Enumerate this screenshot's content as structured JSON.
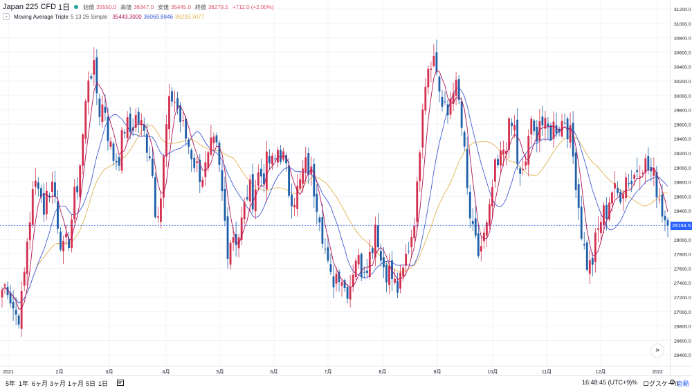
{
  "legend": {
    "symbol": "Japan 225 CFD",
    "interval": "1日",
    "open_label": "始値",
    "open_value": "35550.0",
    "high_label": "高値",
    "high_value": "36347.0",
    "low_label": "安値",
    "low_value": "35445.0",
    "close_label": "終値",
    "close_value": "36279.5",
    "change": "+712.0 (+2.00%)",
    "indicator_name": "Moving Average Triple",
    "indicator_params": "5 13 26 Simple",
    "ma1_value": "35443.3000",
    "ma2_value": "36069.8846",
    "ma3_value": "36233.3077"
  },
  "price_axis": {
    "labels": [
      "31200.0",
      "31000.0",
      "30800.0",
      "30600.0",
      "30400.0",
      "30200.0",
      "30000.0",
      "29800.0",
      "29600.0",
      "29400.0",
      "29200.0",
      "29000.0",
      "28800.0",
      "28600.0",
      "28400.0",
      "28200.0",
      "28000.0",
      "27800.0",
      "27600.0",
      "27400.0",
      "27200.0",
      "27000.0",
      "26800.0",
      "26600.0",
      "26400.0"
    ],
    "last_price": "28194.5"
  },
  "time_axis": {
    "labels": [
      "2021",
      "2月",
      "3月",
      "4月",
      "5月",
      "6月",
      "7月",
      "8月",
      "9月",
      "10月",
      "11月",
      "12月",
      "2022"
    ]
  },
  "bottom_bar": {
    "ranges": [
      "5年",
      "1年",
      "6ヶ月",
      "3ヶ月",
      "1ヶ月",
      "5日",
      "1日"
    ],
    "time": "16:48:45 (UTC+9)",
    "percent": "%",
    "log": "ログスケール",
    "auto": "自動"
  },
  "colors": {
    "up": "#d32f4f",
    "down": "#1e5fa8",
    "ma_fast": "#ad1457",
    "ma_mid": "#3f5bd6",
    "ma_slow": "#e0b34f",
    "accent": "#2962ff"
  },
  "icons": {
    "goto_realtime": "double-chevron-right-icon",
    "compare": "compare-icon",
    "settings": "gear-icon",
    "collapse": "chevron-down-icon"
  },
  "chart_data": {
    "type": "candlestick",
    "y_range": [
      26400,
      31200
    ],
    "x_labels": [
      "2021",
      "2月",
      "3月",
      "4月",
      "5月",
      "6月",
      "7月",
      "8月",
      "9月",
      "10月",
      "11月",
      "12月",
      "2022"
    ],
    "series": [
      {
        "name": "Japan 225 CFD",
        "kind": "ohlc",
        "close_path": [
          27300,
          27400,
          27100,
          26900,
          27200,
          28100,
          28600,
          28900,
          28400,
          28700,
          28800,
          28200,
          27800,
          28000,
          28500,
          28900,
          29600,
          30400,
          30300,
          29800,
          29900,
          29300,
          29100,
          29200,
          29600,
          29500,
          29700,
          29600,
          29400,
          29200,
          28400,
          28600,
          29500,
          30000,
          29900,
          29600,
          29400,
          29200,
          29000,
          28900,
          29000,
          29300,
          29200,
          28600,
          27900,
          28100,
          28000,
          28300,
          28700,
          28600,
          28900,
          28900,
          29100,
          29000,
          29300,
          29100,
          28700,
          28600,
          28700,
          29000,
          29000,
          28700,
          28400,
          27900,
          27400,
          27500,
          27600,
          27300,
          27400,
          27800,
          27600,
          27700,
          27800,
          28300,
          27700,
          27600,
          27500,
          27300,
          27400,
          27800,
          28100,
          28600,
          29900,
          30400,
          30600,
          30300,
          29800,
          29700,
          30200,
          30000,
          29400,
          28500,
          28000,
          27800,
          28000,
          28200,
          28900,
          29000,
          29300,
          29500,
          29600,
          28800,
          28900,
          29600,
          29400,
          29700,
          29500,
          29500,
          29600,
          29600,
          29700,
          29400,
          28900,
          28200,
          27700,
          27600,
          28000,
          28300,
          28400,
          28700,
          28600,
          28700,
          28900,
          28800,
          29000,
          29100,
          29000,
          28900,
          28700,
          28400,
          28200
        ]
      },
      {
        "name": "MA 5",
        "kind": "line"
      },
      {
        "name": "MA 13",
        "kind": "line"
      },
      {
        "name": "MA 26",
        "kind": "line"
      }
    ],
    "last_value": 28194.5,
    "grid": true
  }
}
